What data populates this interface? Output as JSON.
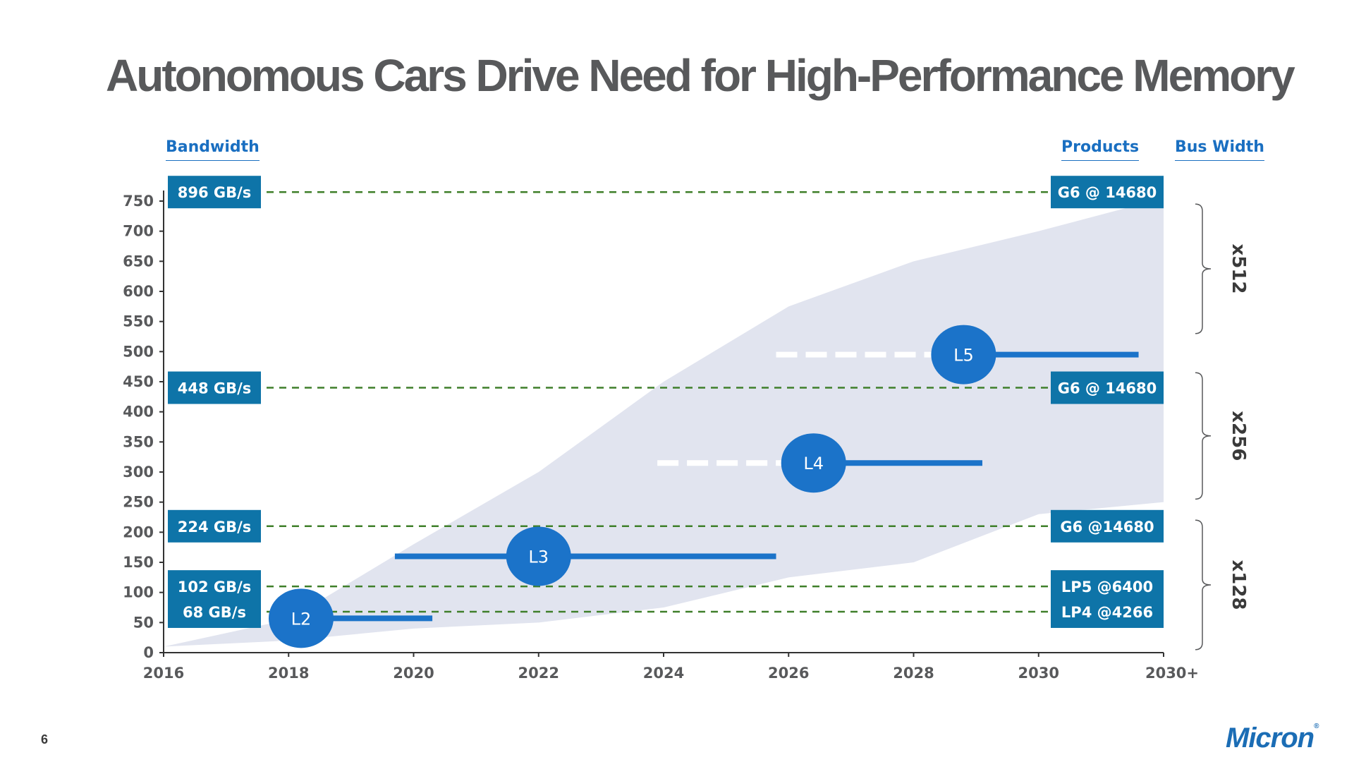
{
  "title": "Autonomous Cars Drive Need for High-Performance Memory",
  "page_number": "6",
  "brand": "Micron",
  "headers": {
    "left": "Bandwidth",
    "products": "Products",
    "bus_width": "Bus Width"
  },
  "colors": {
    "box": "#0e74a8",
    "level": "#1b73c9",
    "band": "#e1e4ef",
    "ref_line": "#3f7f2a",
    "text_gray": "#58595b",
    "accent": "#1a6fc1"
  },
  "chart_data": {
    "type": "area",
    "x_ticks": [
      "2016",
      "2018",
      "2020",
      "2022",
      "2024",
      "2026",
      "2028",
      "2030",
      "2030+"
    ],
    "y_ticks": [
      0,
      50,
      100,
      150,
      200,
      250,
      300,
      350,
      400,
      450,
      500,
      550,
      600,
      650,
      700,
      750
    ],
    "ylim": [
      0,
      750
    ],
    "xlim": [
      2016,
      2032
    ],
    "band": {
      "upper": [
        [
          2016,
          10
        ],
        [
          2018,
          55
        ],
        [
          2020,
          180
        ],
        [
          2022,
          300
        ],
        [
          2024,
          450
        ],
        [
          2026,
          575
        ],
        [
          2028,
          650
        ],
        [
          2030,
          700
        ],
        [
          2032,
          755
        ]
      ],
      "lower": [
        [
          2016,
          10
        ],
        [
          2018,
          20
        ],
        [
          2020,
          40
        ],
        [
          2022,
          50
        ],
        [
          2024,
          75
        ],
        [
          2026,
          125
        ],
        [
          2028,
          150
        ],
        [
          2030,
          230
        ],
        [
          2032,
          250
        ]
      ]
    },
    "reference_lines": [
      {
        "y": 765,
        "bandwidth": "896 GB/s",
        "product": "G6 @ 14680"
      },
      {
        "y": 440,
        "bandwidth": "448 GB/s",
        "product": "G6 @ 14680"
      },
      {
        "y": 210,
        "bandwidth": "224 GB/s",
        "product": "G6 @14680"
      },
      {
        "y": 110,
        "bandwidth": "102 GB/s",
        "product": "LP5 @6400"
      },
      {
        "y": 68,
        "bandwidth": "68 GB/s",
        "product": "LP4 @4266"
      }
    ],
    "autonomy_levels": [
      {
        "name": "L2",
        "x": 2018.2,
        "y": 57,
        "x_start": 2018.2,
        "x_end": 2020.3,
        "dashed_from": null
      },
      {
        "name": "L3",
        "x": 2022.0,
        "y": 160,
        "x_start": 2019.7,
        "x_end": 2025.8,
        "dashed_from": null
      },
      {
        "name": "L4",
        "x": 2026.4,
        "y": 315,
        "x_start": 2026.4,
        "x_end": 2029.1,
        "dashed_from": 2023.9
      },
      {
        "name": "L5",
        "x": 2028.8,
        "y": 495,
        "x_start": 2028.8,
        "x_end": 2031.6,
        "dashed_from": 2025.8
      }
    ],
    "bus_widths": [
      {
        "label": "x512",
        "y_top": 745,
        "y_bottom": 530
      },
      {
        "label": "x256",
        "y_top": 465,
        "y_bottom": 255
      },
      {
        "label": "x128",
        "y_top": 220,
        "y_bottom": 5
      }
    ]
  }
}
